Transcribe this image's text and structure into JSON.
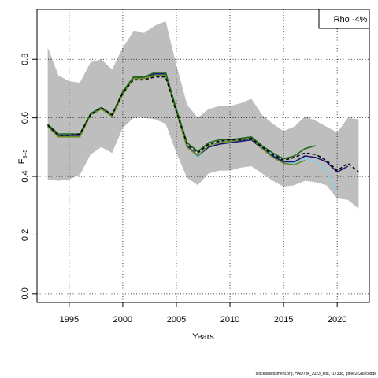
{
  "chart_data": {
    "type": "line",
    "xlabel": "Years",
    "ylabel": "F",
    "ylabel_sub": "3–5",
    "xlim": [
      1992,
      2023
    ],
    "ylim": [
      -0.03,
      0.97
    ],
    "xticks": [
      1995,
      2000,
      2005,
      2010,
      2015,
      2020
    ],
    "yticks": [
      0.0,
      0.2,
      0.4,
      0.6,
      0.8
    ],
    "ytick_labels": [
      "0.0",
      "0.2",
      "0.4",
      "0.6",
      "0.8"
    ],
    "grid": true,
    "legend": {
      "text": "Rho -4%",
      "position": "top-right"
    },
    "band": {
      "color": "#bebebe",
      "x": [
        1993,
        1994,
        1995,
        1996,
        1997,
        1998,
        1999,
        2000,
        2001,
        2002,
        2003,
        2004,
        2005,
        2006,
        2007,
        2008,
        2009,
        2010,
        2011,
        2012,
        2013,
        2014,
        2015,
        2016,
        2017,
        2018,
        2019,
        2020,
        2021,
        2022
      ],
      "upper": [
        0.84,
        0.745,
        0.725,
        0.72,
        0.79,
        0.8,
        0.765,
        0.84,
        0.895,
        0.89,
        0.915,
        0.93,
        0.78,
        0.645,
        0.6,
        0.63,
        0.64,
        0.64,
        0.65,
        0.665,
        0.61,
        0.58,
        0.555,
        0.57,
        0.605,
        0.59,
        0.57,
        0.55,
        0.6,
        0.595
      ],
      "lower": [
        0.39,
        0.385,
        0.39,
        0.405,
        0.475,
        0.5,
        0.48,
        0.565,
        0.6,
        0.6,
        0.595,
        0.58,
        0.48,
        0.395,
        0.37,
        0.41,
        0.42,
        0.42,
        0.43,
        0.435,
        0.41,
        0.385,
        0.365,
        0.37,
        0.385,
        0.38,
        0.37,
        0.325,
        0.32,
        0.29
      ]
    },
    "series": [
      {
        "color": "#87ceeb",
        "width": 1.6,
        "dash": "",
        "x": [
          1993,
          1994,
          1995,
          1996,
          1997,
          1998,
          1999,
          2000,
          2001,
          2002,
          2003,
          2004,
          2005,
          2006,
          2007,
          2008,
          2009,
          2010,
          2011,
          2012,
          2013,
          2014,
          2015,
          2016,
          2017,
          2018,
          2019,
          2020
        ],
        "y": [
          0.575,
          0.545,
          0.545,
          0.545,
          0.615,
          0.635,
          0.61,
          0.685,
          0.735,
          0.74,
          0.75,
          0.75,
          0.625,
          0.505,
          0.465,
          0.5,
          0.515,
          0.52,
          0.525,
          0.53,
          0.5,
          0.475,
          0.45,
          0.445,
          0.46,
          0.45,
          0.42,
          0.345
        ]
      },
      {
        "color": "#191970",
        "width": 1.6,
        "dash": "",
        "x": [
          1993,
          1994,
          1995,
          1996,
          1997,
          1998,
          1999,
          2000,
          2001,
          2002,
          2003,
          2004,
          2005,
          2006,
          2007,
          2008,
          2009,
          2010,
          2011,
          2012,
          2013,
          2014,
          2015,
          2016,
          2017,
          2018,
          2019,
          2020,
          2021
        ],
        "y": [
          0.575,
          0.54,
          0.54,
          0.54,
          0.615,
          0.635,
          0.61,
          0.685,
          0.735,
          0.74,
          0.75,
          0.75,
          0.625,
          0.505,
          0.47,
          0.5,
          0.51,
          0.515,
          0.52,
          0.525,
          0.495,
          0.47,
          0.45,
          0.45,
          0.47,
          0.465,
          0.45,
          0.415,
          0.435
        ]
      },
      {
        "color": "#6b8e23",
        "width": 1.6,
        "dash": "",
        "x": [
          1993,
          1994,
          1995,
          1996,
          1997,
          1998,
          1999,
          2000,
          2001,
          2002,
          2003,
          2004,
          2005,
          2006,
          2007,
          2008,
          2009,
          2010,
          2011,
          2012,
          2013,
          2014,
          2015,
          2016,
          2017
        ],
        "y": [
          0.57,
          0.535,
          0.535,
          0.535,
          0.61,
          0.63,
          0.605,
          0.68,
          0.735,
          0.735,
          0.745,
          0.745,
          0.62,
          0.5,
          0.47,
          0.505,
          0.515,
          0.52,
          0.525,
          0.53,
          0.495,
          0.465,
          0.445,
          0.44,
          0.455
        ]
      },
      {
        "color": "#1e6b1e",
        "width": 1.6,
        "dash": "",
        "x": [
          1993,
          1994,
          1995,
          1996,
          1997,
          1998,
          1999,
          2000,
          2001,
          2002,
          2003,
          2004,
          2005,
          2006,
          2007,
          2008,
          2009,
          2010,
          2011,
          2012,
          2013,
          2014,
          2015,
          2016,
          2017,
          2018
        ],
        "y": [
          0.578,
          0.545,
          0.545,
          0.545,
          0.615,
          0.635,
          0.61,
          0.69,
          0.74,
          0.74,
          0.755,
          0.755,
          0.63,
          0.515,
          0.485,
          0.515,
          0.525,
          0.525,
          0.53,
          0.535,
          0.505,
          0.48,
          0.46,
          0.47,
          0.495,
          0.505
        ]
      },
      {
        "color": "#000000",
        "width": 1.6,
        "dash": "4,3",
        "x": [
          1993,
          1994,
          1995,
          1996,
          1997,
          1998,
          1999,
          2000,
          2001,
          2002,
          2003,
          2004,
          2005,
          2006,
          2007,
          2008,
          2009,
          2010,
          2011,
          2012,
          2013,
          2014,
          2015,
          2016,
          2017,
          2018,
          2019,
          2020,
          2021,
          2022
        ],
        "y": [
          0.575,
          0.54,
          0.54,
          0.545,
          0.61,
          0.635,
          0.61,
          0.685,
          0.73,
          0.73,
          0.74,
          0.74,
          0.62,
          0.51,
          0.48,
          0.51,
          0.52,
          0.525,
          0.525,
          0.53,
          0.5,
          0.475,
          0.455,
          0.465,
          0.48,
          0.475,
          0.455,
          0.42,
          0.445,
          0.415
        ]
      }
    ]
  },
  "footer": "stockassessment.org, HAD7bk_2023_test, r17338, git:ec2c2a0c6dde"
}
